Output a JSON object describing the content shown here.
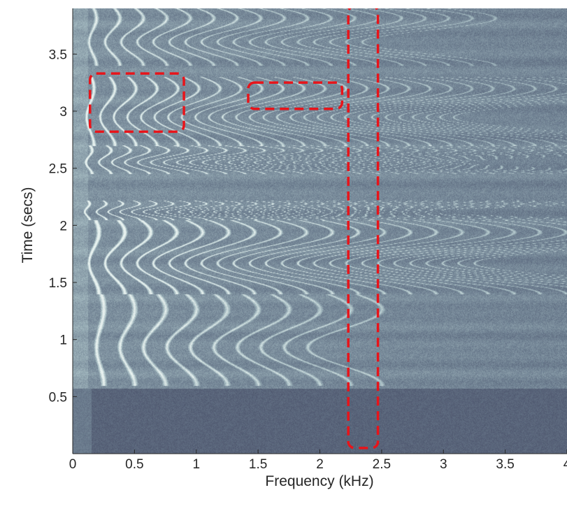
{
  "chart_data": {
    "type": "heatmap",
    "title": "",
    "xlabel": "Frequency (kHz)",
    "ylabel": "Time (secs)",
    "xlim": [
      0,
      4
    ],
    "ylim": [
      0,
      3.9
    ],
    "x_ticks": [
      {
        "value": 0,
        "label": "0"
      },
      {
        "value": 0.5,
        "label": "0.5"
      },
      {
        "value": 1,
        "label": "1"
      },
      {
        "value": 1.5,
        "label": "1.5"
      },
      {
        "value": 2,
        "label": "2"
      },
      {
        "value": 2.5,
        "label": "2.5"
      },
      {
        "value": 3,
        "label": "3"
      },
      {
        "value": 3.5,
        "label": "3.5"
      },
      {
        "value": 4,
        "label": "4"
      }
    ],
    "y_ticks": [
      {
        "value": 0.5,
        "label": "0.5"
      },
      {
        "value": 1,
        "label": "1"
      },
      {
        "value": 1.5,
        "label": "1.5"
      },
      {
        "value": 2,
        "label": "2"
      },
      {
        "value": 2.5,
        "label": "2.5"
      },
      {
        "value": 3,
        "label": "3"
      },
      {
        "value": 3.5,
        "label": "3.5"
      }
    ],
    "grid": false,
    "colormap": [
      "#3c3f5a",
      "#6c7d8f",
      "#a6bcc2",
      "#e8f2f0"
    ],
    "noise_onset_secs": 0.57,
    "harmonic_segments": [
      {
        "t_start": 2.05,
        "t_end": 2.22,
        "f0_khz": 0.115,
        "n_harmonics": 30,
        "sweep_khz": 0.02,
        "strength": 0.85
      },
      {
        "t_start": 1.4,
        "t_end": 2.05,
        "f0_khz": 0.17,
        "n_harmonics": 25,
        "sweep_khz": 0.04,
        "strength": 0.85
      },
      {
        "t_start": 0.6,
        "t_end": 1.4,
        "f0_khz": 0.22,
        "n_harmonics": 10,
        "sweep_khz": 0.03,
        "strength": 0.7
      },
      {
        "t_start": 2.45,
        "t_end": 2.7,
        "f0_khz": 0.13,
        "n_harmonics": 30,
        "sweep_khz": 0.025,
        "strength": 0.8
      },
      {
        "t_start": 2.7,
        "t_end": 3.3,
        "f0_khz": 0.14,
        "n_harmonics": 28,
        "sweep_khz": 0.03,
        "strength": 0.75
      },
      {
        "t_start": 3.4,
        "t_end": 3.9,
        "f0_khz": 0.16,
        "n_harmonics": 18,
        "sweep_khz": 0.03,
        "strength": 0.65
      }
    ],
    "annotations": [
      {
        "type": "dashed-rectangle",
        "color": "#e8141a",
        "x_range": [
          0.14,
          0.9
        ],
        "y_range": [
          2.82,
          3.33
        ]
      },
      {
        "type": "dashed-rectangle",
        "color": "#e8141a",
        "x_range": [
          1.42,
          2.18
        ],
        "y_range": [
          3.02,
          3.25
        ]
      },
      {
        "type": "dashed-rectangle",
        "color": "#e8141a",
        "x_range": [
          2.23,
          2.47
        ],
        "y_range": [
          0.05,
          3.92
        ]
      }
    ]
  }
}
